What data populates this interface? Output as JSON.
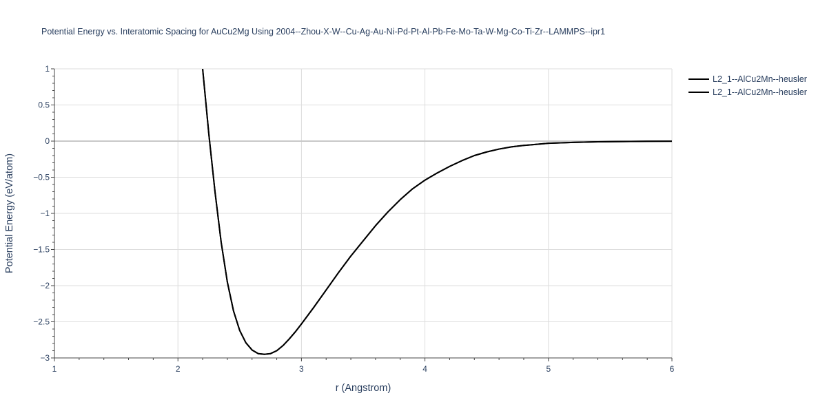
{
  "chart_data": {
    "type": "line",
    "title": "Potential Energy vs. Interatomic Spacing for AuCu2Mg Using 2004--Zhou-X-W--Cu-Ag-Au-Ni-Pd-Pt-Al-Pb-Fe-Mo-Ta-W-Mg-Co-Ti-Zr--LAMMPS--ipr1",
    "xlabel": "r (Angstrom)",
    "ylabel": "Potential Energy (eV/atom)",
    "xlim": [
      1,
      6
    ],
    "ylim": [
      -3,
      1
    ],
    "xticks": [
      1,
      2,
      3,
      4,
      5,
      6
    ],
    "xtick_labels": [
      "1",
      "2",
      "3",
      "4",
      "5",
      "6"
    ],
    "yticks": [
      1,
      0.5,
      0,
      -0.5,
      -1,
      -1.5,
      -2,
      -2.5,
      -3
    ],
    "ytick_labels": [
      "1",
      "0.5",
      "0",
      "−0.5",
      "−1",
      "−1.5",
      "−2",
      "−2.5",
      "−3"
    ],
    "grid": true,
    "legend_position": "top-right",
    "series": [
      {
        "name": "L2_1--AlCu2Mn--heusler",
        "color": "#000000",
        "x": [
          2.2,
          2.25,
          2.3,
          2.35,
          2.4,
          2.45,
          2.5,
          2.55,
          2.6,
          2.65,
          2.7,
          2.75,
          2.8,
          2.85,
          2.9,
          2.95,
          3.0,
          3.1,
          3.2,
          3.3,
          3.4,
          3.5,
          3.6,
          3.7,
          3.8,
          3.9,
          4.0,
          4.1,
          4.2,
          4.3,
          4.4,
          4.5,
          4.6,
          4.7,
          4.8,
          4.9,
          5.0,
          5.2,
          5.4,
          5.6,
          5.8,
          6.0
        ],
        "y": [
          1.0,
          0.1,
          -0.7,
          -1.4,
          -1.95,
          -2.35,
          -2.62,
          -2.79,
          -2.89,
          -2.94,
          -2.95,
          -2.94,
          -2.9,
          -2.83,
          -2.74,
          -2.64,
          -2.53,
          -2.3,
          -2.06,
          -1.82,
          -1.59,
          -1.38,
          -1.17,
          -0.98,
          -0.81,
          -0.66,
          -0.54,
          -0.44,
          -0.35,
          -0.27,
          -0.2,
          -0.15,
          -0.11,
          -0.08,
          -0.06,
          -0.045,
          -0.03,
          -0.018,
          -0.01,
          -0.006,
          -0.003,
          -0.001
        ]
      },
      {
        "name": "L2_1--AlCu2Mn--heusler",
        "color": "#000000",
        "x": [
          2.2,
          2.25,
          2.3,
          2.35,
          2.4,
          2.45,
          2.5,
          2.55,
          2.6,
          2.65,
          2.7,
          2.75,
          2.8,
          2.85,
          2.9,
          2.95,
          3.0,
          3.1,
          3.2,
          3.3,
          3.4,
          3.5,
          3.6,
          3.7,
          3.8,
          3.9,
          4.0,
          4.1,
          4.2,
          4.3,
          4.4,
          4.5,
          4.6,
          4.7,
          4.8,
          4.9,
          5.0,
          5.2,
          5.4,
          5.6,
          5.8,
          6.0
        ],
        "y": [
          1.0,
          0.1,
          -0.7,
          -1.4,
          -1.95,
          -2.35,
          -2.62,
          -2.79,
          -2.89,
          -2.94,
          -2.95,
          -2.94,
          -2.9,
          -2.83,
          -2.74,
          -2.64,
          -2.53,
          -2.3,
          -2.06,
          -1.82,
          -1.59,
          -1.38,
          -1.17,
          -0.98,
          -0.81,
          -0.66,
          -0.54,
          -0.44,
          -0.35,
          -0.27,
          -0.2,
          -0.15,
          -0.11,
          -0.08,
          -0.06,
          -0.045,
          -0.03,
          -0.018,
          -0.01,
          -0.006,
          -0.003,
          -0.001
        ]
      }
    ]
  }
}
